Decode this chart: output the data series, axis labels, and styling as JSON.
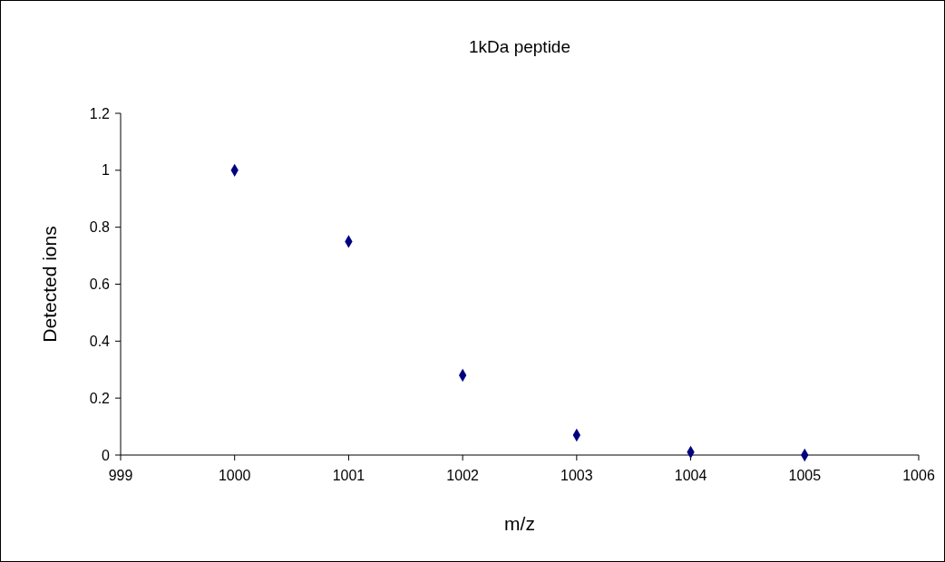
{
  "chart_data": {
    "type": "scatter",
    "title": "1kDa peptide",
    "xlabel": "m/z",
    "ylabel": "Detected ions",
    "x": [
      1000,
      1001,
      1002,
      1003,
      1004,
      1005
    ],
    "series": [
      {
        "color": "#000080",
        "values": [
          1.0,
          0.75,
          0.28,
          0.07,
          0.01,
          0
        ]
      }
    ],
    "xlim": [
      999,
      1006
    ],
    "xticks": [
      999,
      1000,
      1001,
      1002,
      1003,
      1004,
      1005,
      1006
    ],
    "ylim": [
      0,
      1.2
    ],
    "yticks": [
      0,
      0.2,
      0.4,
      0.6,
      0.8,
      1,
      1.2
    ],
    "grid": false,
    "marker": "diamond"
  }
}
